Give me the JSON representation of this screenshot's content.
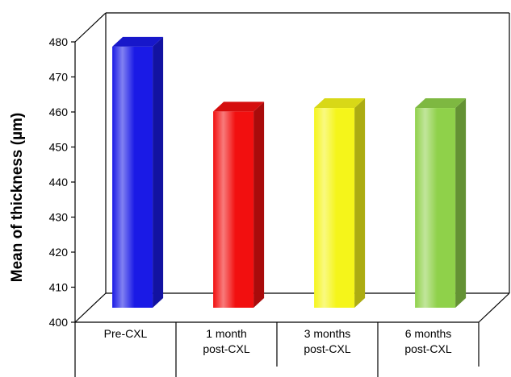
{
  "chart_data": {
    "type": "bar",
    "style": "3d",
    "categories": [
      [
        "Pre-CXL"
      ],
      [
        "1 month",
        "post-CXL"
      ],
      [
        "3 months",
        "post-CXL"
      ],
      [
        "6 months",
        "post-CXL"
      ]
    ],
    "values": [
      474.5,
      456,
      457,
      457
    ],
    "colors": [
      "#1a1ae6",
      "#f20f0f",
      "#f5f51a",
      "#8fd14a"
    ],
    "ylabel": "Mean of thickness (µm)",
    "ylim": [
      400,
      480
    ],
    "yticks": [
      400,
      410,
      420,
      430,
      440,
      450,
      460,
      470,
      480
    ],
    "grid": false,
    "legend": "none"
  }
}
